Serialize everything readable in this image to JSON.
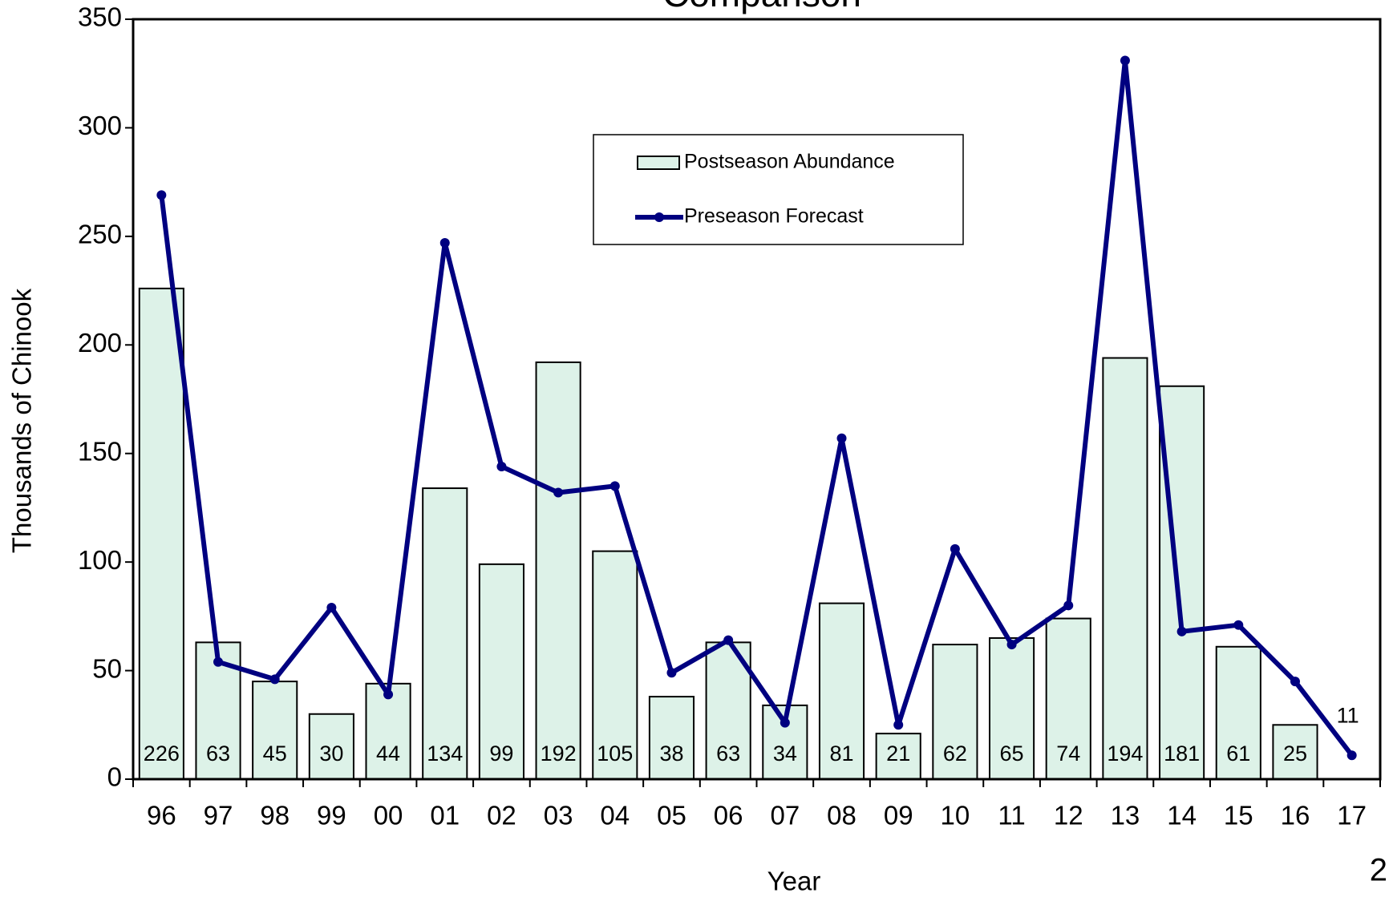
{
  "chart_data": {
    "type": "bar-line",
    "title": "Comparison",
    "page_number": "2",
    "x_label": "Year",
    "y_label": "Thousands of Chinook",
    "categories": [
      "96",
      "97",
      "98",
      "99",
      "00",
      "01",
      "02",
      "03",
      "04",
      "05",
      "06",
      "07",
      "08",
      "09",
      "10",
      "11",
      "12",
      "13",
      "14",
      "15",
      "16",
      "17"
    ],
    "series": [
      {
        "name": "Postseason Abundance",
        "type": "bar",
        "color": "#ddf2e8",
        "values": [
          226,
          63,
          45,
          30,
          44,
          134,
          99,
          192,
          105,
          38,
          63,
          34,
          81,
          21,
          62,
          65,
          74,
          194,
          181,
          61,
          25,
          null
        ]
      },
      {
        "name": "Preseason Forecast",
        "type": "line",
        "color": "#000080",
        "values": [
          269,
          54,
          46,
          79,
          39,
          247,
          144,
          132,
          135,
          49,
          64,
          26,
          157,
          25,
          106,
          62,
          80,
          331,
          68,
          71,
          45,
          11
        ]
      }
    ],
    "ylim": [
      0,
      350
    ],
    "yticks": [
      0,
      50,
      100,
      150,
      200,
      250,
      300,
      350
    ],
    "legend": "upper-center"
  }
}
